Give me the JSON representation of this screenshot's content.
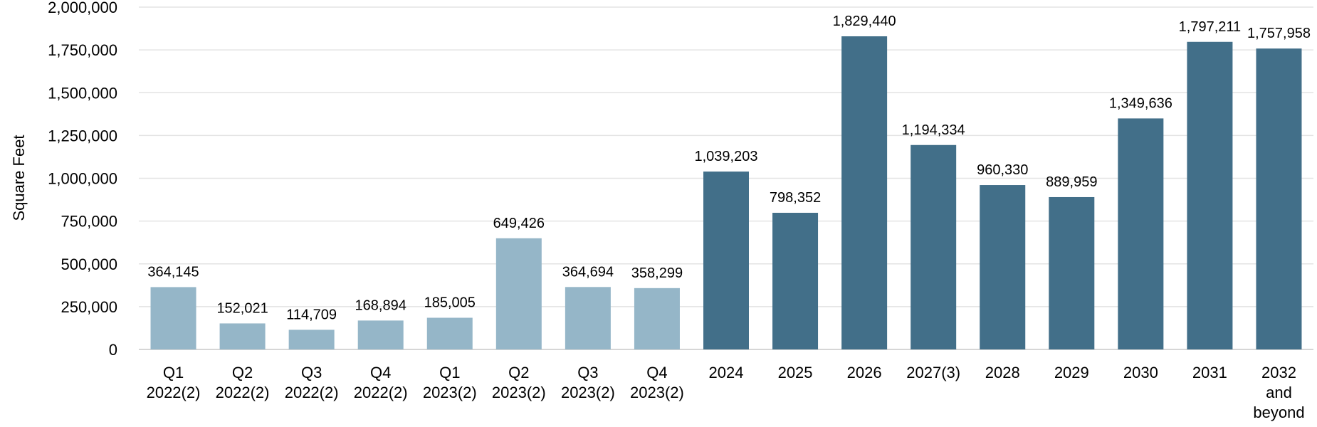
{
  "chart_data": {
    "type": "bar",
    "ylabel": "Square Feet",
    "ylim": [
      0,
      2000000
    ],
    "yticks": [
      "0",
      "250,000",
      "500,000",
      "750,000",
      "1,000,000",
      "1,250,000",
      "1,500,000",
      "1,750,000",
      "2,000,000"
    ],
    "ytick_values": [
      0,
      250000,
      500000,
      750000,
      1000000,
      1250000,
      1500000,
      1750000,
      2000000
    ],
    "grid": true,
    "colors": {
      "quarterly": "#95b6c8",
      "annual": "#426f89"
    },
    "categories": [
      [
        "Q1",
        "2022(2)"
      ],
      [
        "Q2",
        "2022(2)"
      ],
      [
        "Q3",
        "2022(2)"
      ],
      [
        "Q4",
        "2022(2)"
      ],
      [
        "Q1",
        "2023(2)"
      ],
      [
        "Q2",
        "2023(2)"
      ],
      [
        "Q3",
        "2023(2)"
      ],
      [
        "Q4",
        "2023(2)"
      ],
      [
        "2024"
      ],
      [
        "2025"
      ],
      [
        "2026"
      ],
      [
        "2027(3)"
      ],
      [
        "2028"
      ],
      [
        "2029"
      ],
      [
        "2030"
      ],
      [
        "2031"
      ],
      [
        "2032",
        "and",
        "beyond"
      ]
    ],
    "values": [
      364145,
      152021,
      114709,
      168894,
      185005,
      649426,
      364694,
      358299,
      1039203,
      798352,
      1829440,
      1194334,
      960330,
      889959,
      1349636,
      1797211,
      1757958
    ],
    "data_labels": [
      "364,145",
      "152,021",
      "114,709",
      "168,894",
      "185,005",
      "649,426",
      "364,694",
      "358,299",
      "1,039,203",
      "798,352",
      "1,829,440",
      "1,194,334",
      "960,330",
      "889,959",
      "1,349,636",
      "1,797,211",
      "1,757,958"
    ],
    "series_group": [
      "quarterly",
      "quarterly",
      "quarterly",
      "quarterly",
      "quarterly",
      "quarterly",
      "quarterly",
      "quarterly",
      "annual",
      "annual",
      "annual",
      "annual",
      "annual",
      "annual",
      "annual",
      "annual",
      "annual"
    ]
  }
}
